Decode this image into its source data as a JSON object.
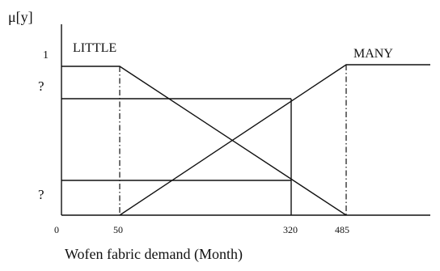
{
  "y_axis_label": "μ[y]",
  "x_axis_caption": "Wofen fabric demand  (Month)",
  "y_ticks": {
    "one": "1",
    "upper_unknown": "?",
    "lower_unknown": "?"
  },
  "x_ticks": [
    "0",
    "50",
    "320",
    "485"
  ],
  "sets": {
    "little": "LITTLE",
    "many": "MANY"
  }
}
